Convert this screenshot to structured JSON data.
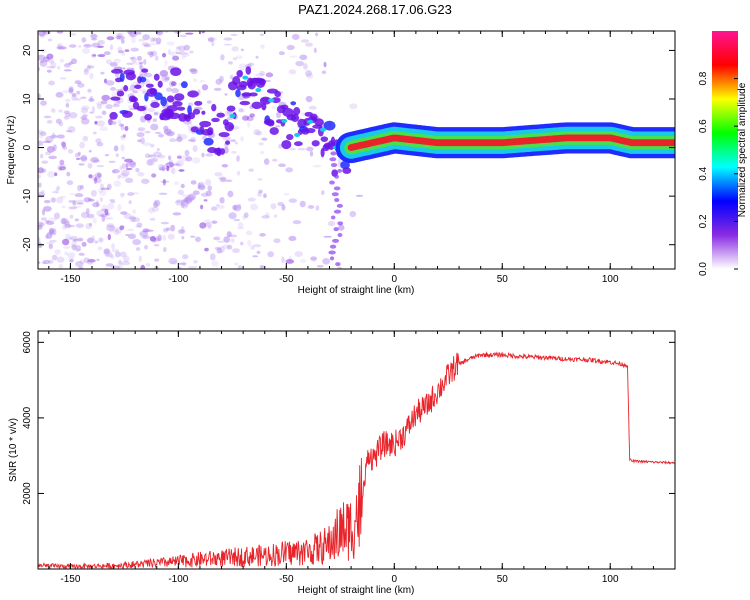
{
  "title": "PAZ1.2024.268.17.06.G23",
  "colors": {
    "snr_line": "#e8232a",
    "spectrogram_low": "#8a3cf0",
    "spectrogram_ridge": "#e8232a",
    "axis": "#000000"
  },
  "chart_data": [
    {
      "type": "heatmap",
      "name": "spectrogram",
      "xlabel": "Height of straight line (km)",
      "ylabel": "Frequency (Hz)",
      "xlim": [
        -165,
        130
      ],
      "ylim": [
        -25,
        24
      ],
      "xticks": [
        -150,
        -100,
        -50,
        0,
        50,
        100
      ],
      "yticks": [
        -20,
        -10,
        0,
        10,
        20
      ],
      "colorbar": {
        "label": "Normalized spectral amplitude",
        "range": [
          0,
          1
        ],
        "ticks": [
          0.0,
          0.2,
          0.4,
          0.6,
          0.8
        ],
        "colormap": [
          "#ffffff",
          "#8a2be2",
          "#0000ff",
          "#00ffff",
          "#00ff00",
          "#ffff00",
          "#ff0000",
          "#ff1493"
        ]
      },
      "ridge": [
        {
          "x": -100,
          "y": 11
        },
        {
          "x": -90,
          "y": 6
        },
        {
          "x": -80,
          "y": 2
        },
        {
          "x": -70,
          "y": 14
        },
        {
          "x": -60,
          "y": 9
        },
        {
          "x": -50,
          "y": 5
        },
        {
          "x": -40,
          "y": 4
        },
        {
          "x": -30,
          "y": 1
        },
        {
          "x": -25,
          "y": -3
        },
        {
          "x": -20,
          "y": 0
        },
        {
          "x": -10,
          "y": 1
        },
        {
          "x": 0,
          "y": 2
        },
        {
          "x": 20,
          "y": 1
        },
        {
          "x": 50,
          "y": 1
        },
        {
          "x": 80,
          "y": 2
        },
        {
          "x": 100,
          "y": 2
        },
        {
          "x": 110,
          "y": 1
        },
        {
          "x": 130,
          "y": 1
        }
      ]
    },
    {
      "type": "line",
      "name": "snr",
      "xlabel": "Height of straight line (km)",
      "ylabel": "SNR (10 * v/v)",
      "xlim": [
        -165,
        130
      ],
      "ylim": [
        0,
        6300
      ],
      "xticks": [
        -150,
        -100,
        -50,
        0,
        50,
        100
      ],
      "yticks": [
        2000,
        4000,
        6000
      ],
      "x": [
        -165,
        -150,
        -140,
        -130,
        -120,
        -110,
        -100,
        -90,
        -80,
        -70,
        -60,
        -50,
        -40,
        -35,
        -30,
        -25,
        -20,
        -15,
        -12,
        -10,
        -5,
        0,
        5,
        10,
        15,
        20,
        25,
        30,
        35,
        40,
        50,
        60,
        70,
        80,
        90,
        100,
        108,
        109,
        110,
        120,
        130
      ],
      "y": [
        80,
        60,
        70,
        80,
        110,
        140,
        180,
        230,
        260,
        300,
        330,
        380,
        430,
        500,
        600,
        900,
        1000,
        1600,
        3000,
        2800,
        3200,
        3200,
        3500,
        4000,
        4200,
        4600,
        5000,
        5400,
        5550,
        5650,
        5650,
        5600,
        5580,
        5540,
        5520,
        5460,
        5380,
        2900,
        2850,
        2820,
        2800
      ]
    }
  ]
}
